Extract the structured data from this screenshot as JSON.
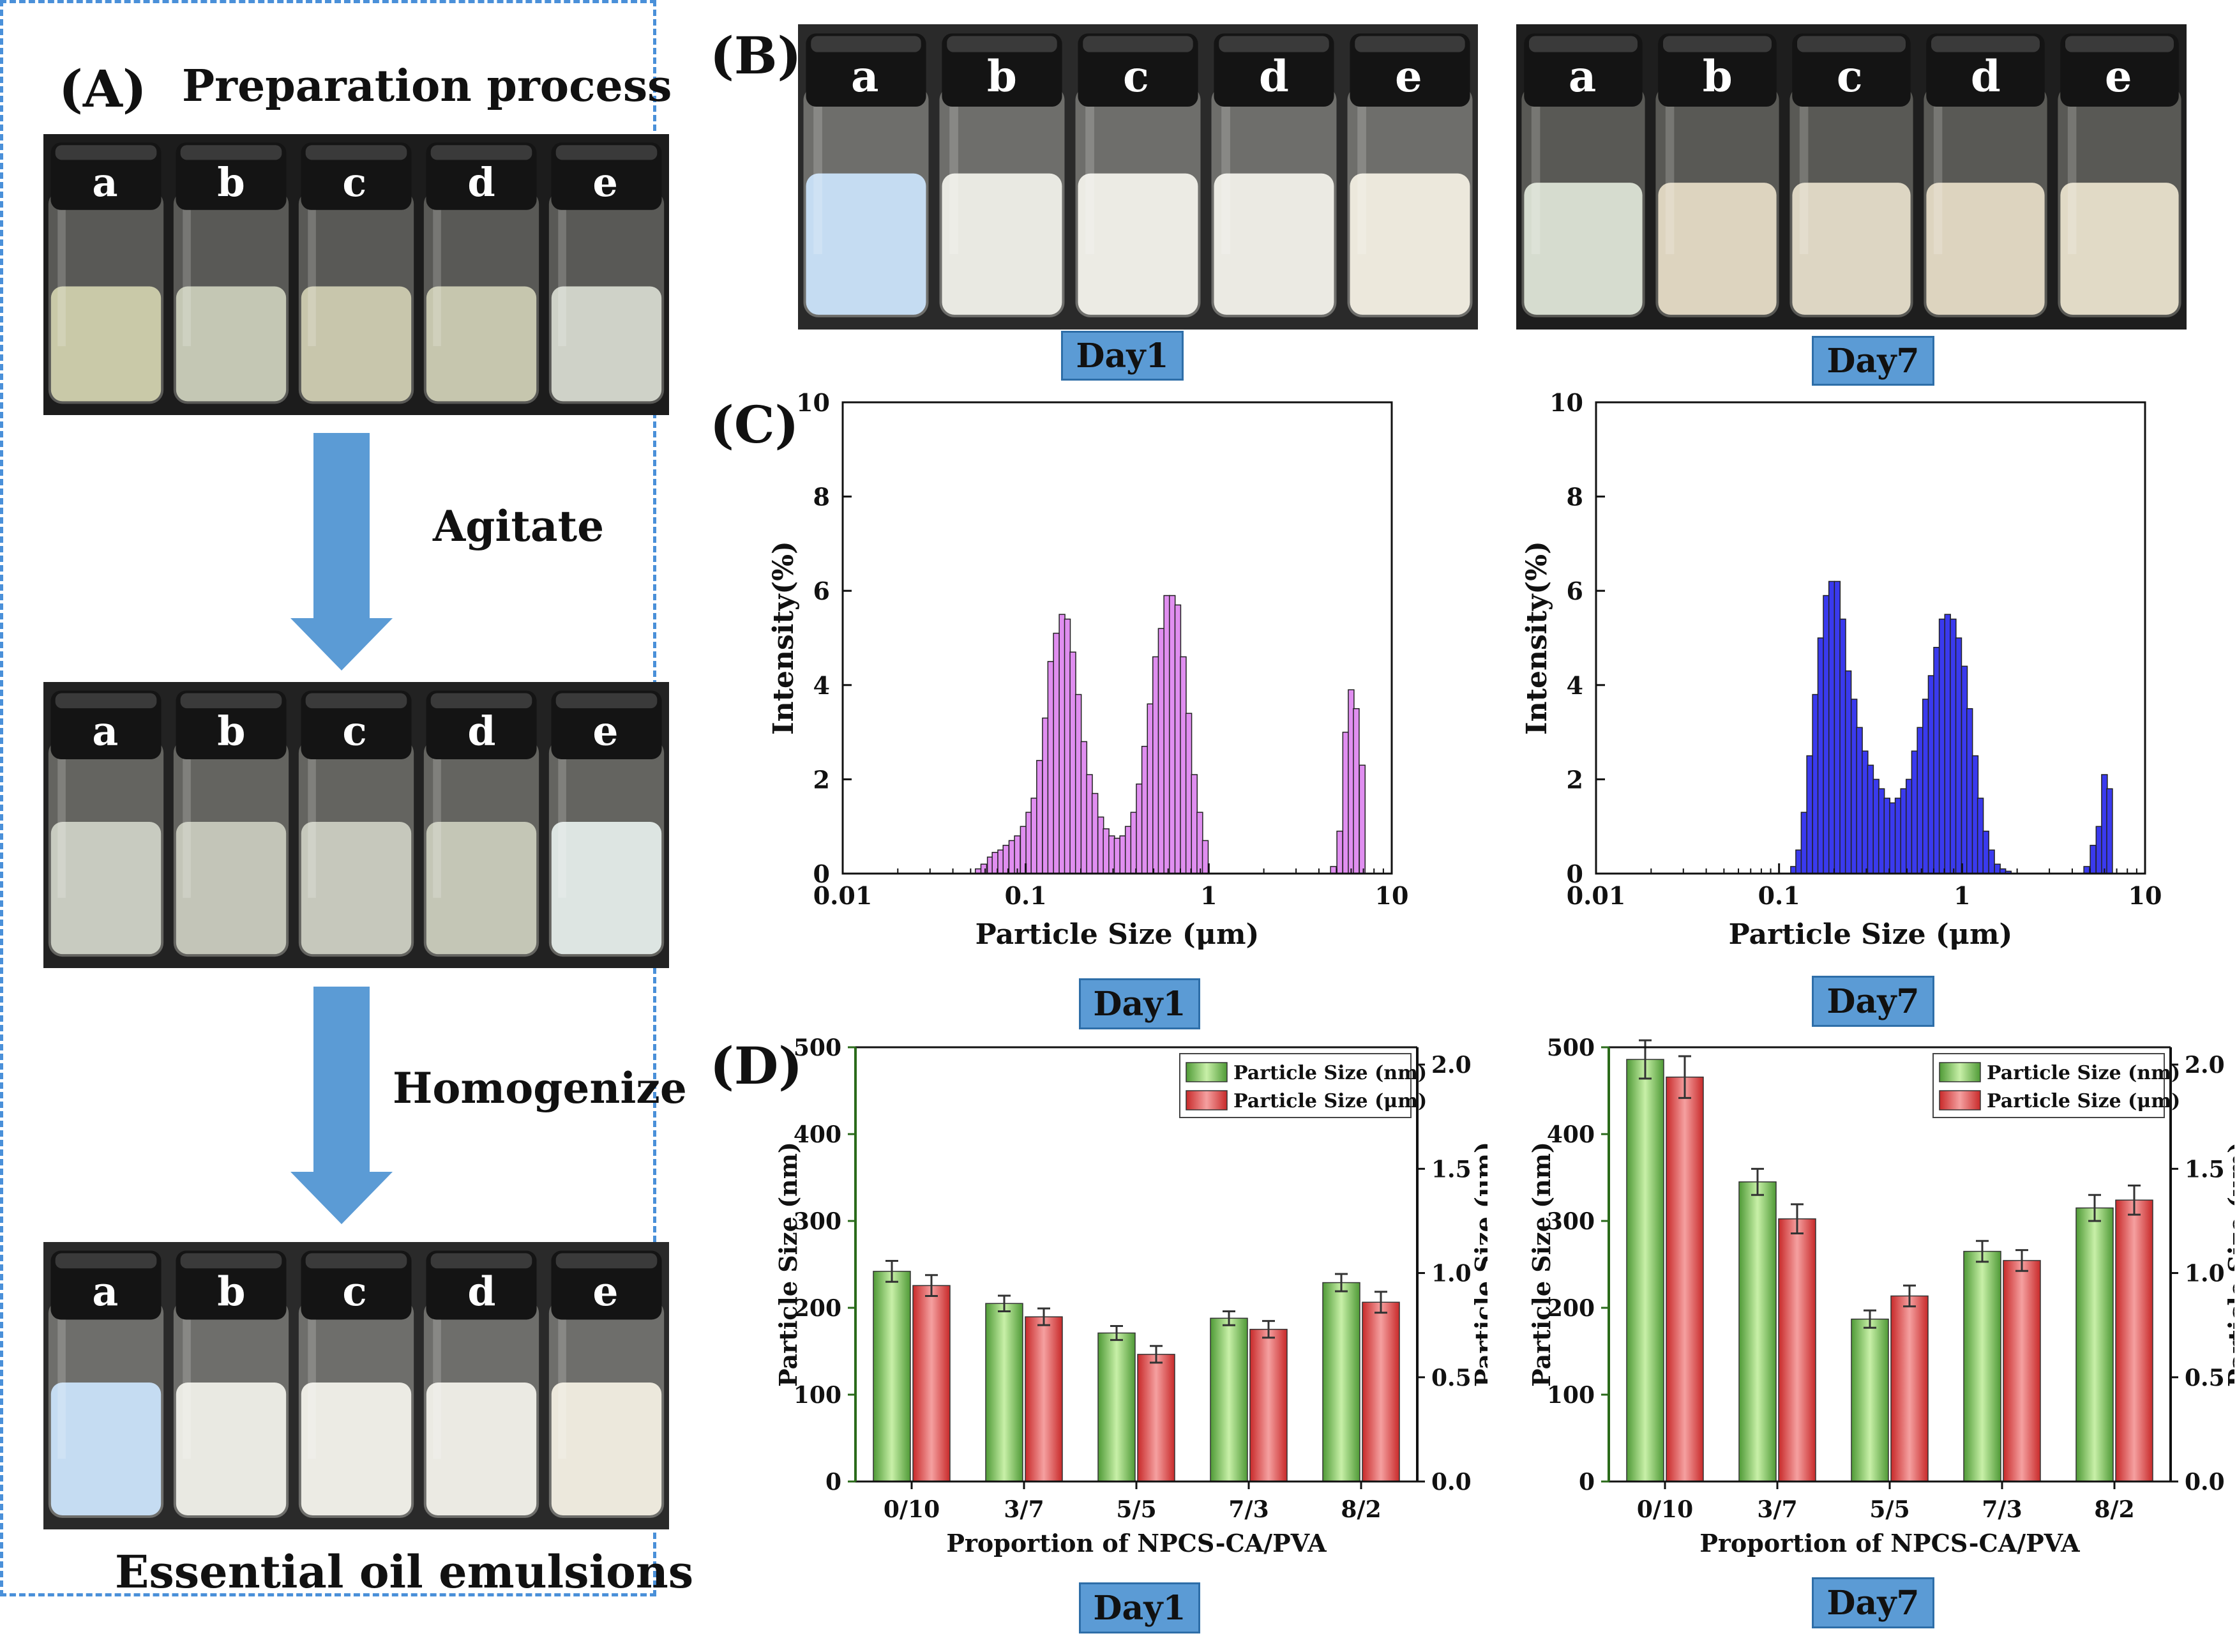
{
  "panel_a": {
    "letter": "(A)",
    "title": "Preparation process",
    "step1": "Agitate",
    "step2": "Homogenize",
    "footer": "Essential oil emulsions",
    "vial_labels": [
      "a",
      "b",
      "c",
      "d",
      "e"
    ]
  },
  "panel_b": {
    "letter": "(B)",
    "vial_labels": [
      "a",
      "b",
      "c",
      "d",
      "e"
    ],
    "day1_label": "Day1",
    "day7_label": "Day7"
  },
  "panel_c": {
    "letter": "(C)",
    "day1_label": "Day1",
    "day7_label": "Day7"
  },
  "panel_d": {
    "letter": "(D)",
    "day1_label": "Day1",
    "day7_label": "Day7"
  },
  "colors": {
    "dashed_border": "#4a90d9",
    "arrow": "#5b9bd5",
    "day_box": "#5b9bd5",
    "hist_day1": "#e08ef0",
    "hist_day7": "#3a3aee",
    "bar_nm": "#7fc25a",
    "bar_um": "#e2504e"
  },
  "chart_data": [
    {
      "type": "bar",
      "id": "c-day1",
      "title": "",
      "xlabel": "Particle Size (μm)",
      "ylabel": "Intensity(%)",
      "xscale": "log",
      "xlim": [
        0.01,
        10
      ],
      "ylim": [
        0,
        10
      ],
      "xticks": [
        "0.01",
        "0.1",
        "1",
        "10"
      ],
      "yticks": [
        "0",
        "2",
        "4",
        "6",
        "8",
        "10"
      ],
      "x": [
        0.055,
        0.059,
        0.064,
        0.068,
        0.073,
        0.078,
        0.084,
        0.09,
        0.097,
        0.104,
        0.111,
        0.119,
        0.128,
        0.137,
        0.147,
        0.158,
        0.169,
        0.181,
        0.194,
        0.208,
        0.223,
        0.239,
        0.257,
        0.275,
        0.295,
        0.316,
        0.339,
        0.363,
        0.389,
        0.417,
        0.447,
        0.479,
        0.513,
        0.55,
        0.59,
        0.632,
        0.678,
        0.726,
        0.778,
        0.834,
        0.894,
        0.958,
        4.8,
        5.2,
        5.6,
        6.0,
        6.4,
        6.9
      ],
      "values": [
        0.1,
        0.2,
        0.35,
        0.45,
        0.5,
        0.6,
        0.7,
        0.8,
        1.0,
        1.3,
        1.6,
        2.4,
        3.3,
        4.5,
        5.1,
        5.5,
        5.4,
        4.7,
        3.8,
        2.8,
        2.1,
        1.7,
        1.2,
        0.95,
        0.8,
        0.75,
        0.8,
        1.0,
        1.3,
        1.9,
        2.7,
        3.6,
        4.6,
        5.2,
        5.9,
        5.9,
        5.7,
        4.6,
        3.4,
        2.1,
        1.3,
        0.7,
        0.15,
        0.9,
        3.0,
        3.9,
        3.5,
        2.3
      ],
      "series_color": "#e08ef0"
    },
    {
      "type": "bar",
      "id": "c-day7",
      "title": "",
      "xlabel": "Particle Size (μm)",
      "ylabel": "Intensity(%)",
      "xscale": "log",
      "xlim": [
        0.01,
        10
      ],
      "ylim": [
        0,
        10
      ],
      "xticks": [
        "0.01",
        "0.1",
        "1",
        "10"
      ],
      "yticks": [
        "0",
        "2",
        "4",
        "6",
        "8",
        "10"
      ],
      "x": [
        0.12,
        0.128,
        0.137,
        0.147,
        0.158,
        0.169,
        0.181,
        0.194,
        0.208,
        0.223,
        0.239,
        0.257,
        0.275,
        0.295,
        0.316,
        0.339,
        0.363,
        0.389,
        0.417,
        0.447,
        0.479,
        0.513,
        0.55,
        0.59,
        0.632,
        0.678,
        0.726,
        0.778,
        0.834,
        0.894,
        0.958,
        1.03,
        1.1,
        1.18,
        1.26,
        1.35,
        1.45,
        1.56,
        1.67,
        1.79,
        4.8,
        5.2,
        5.6,
        6.0,
        6.4
      ],
      "values": [
        0.15,
        0.5,
        1.3,
        2.5,
        3.8,
        5.0,
        5.9,
        6.2,
        6.2,
        5.4,
        4.3,
        3.7,
        3.1,
        2.6,
        2.3,
        2.0,
        1.8,
        1.6,
        1.5,
        1.6,
        1.8,
        2.0,
        2.6,
        3.1,
        3.7,
        4.2,
        4.8,
        5.4,
        5.5,
        5.4,
        5.0,
        4.4,
        3.5,
        2.5,
        1.6,
        0.9,
        0.5,
        0.2,
        0.1,
        0.05,
        0.15,
        0.6,
        1.0,
        2.1,
        1.8
      ],
      "series_color": "#3a3aee"
    },
    {
      "type": "bar",
      "id": "d-day1",
      "title": "",
      "xlabel": "Proportion of  NPCS-CA/PVA",
      "ylabel": "Particle Size (nm)",
      "ylabel_right": "Particle Size (μm)",
      "categories": [
        "0/10",
        "3/7",
        "5/5",
        "7/3",
        "8/2"
      ],
      "ylim": [
        0,
        500
      ],
      "ylim_right": [
        0,
        2.083
      ],
      "yticks": [
        "0",
        "100",
        "200",
        "300",
        "400",
        "500"
      ],
      "yticks_right": [
        "0.0",
        "0.5",
        "1.0",
        "1.5",
        "2.0"
      ],
      "series": [
        {
          "name": "Particle Size (nm)",
          "axis": "left",
          "values": [
            242,
            205,
            171,
            188,
            229
          ],
          "errors": [
            12,
            9,
            8,
            8,
            10
          ]
        },
        {
          "name": "Particle Size (μm)",
          "axis": "right",
          "values": [
            0.94,
            0.79,
            0.61,
            0.73,
            0.86
          ],
          "errors": [
            0.05,
            0.04,
            0.04,
            0.04,
            0.05
          ]
        }
      ]
    },
    {
      "type": "bar",
      "id": "d-day7",
      "title": "",
      "xlabel": "Proportion of  NPCS-CA/PVA",
      "ylabel": "Particle Size (nm)",
      "ylabel_right": "Particle Size (μm)",
      "categories": [
        "0/10",
        "3/7",
        "5/5",
        "7/3",
        "8/2"
      ],
      "ylim": [
        0,
        500
      ],
      "ylim_right": [
        0,
        2.083
      ],
      "yticks": [
        "0",
        "100",
        "200",
        "300",
        "400",
        "500"
      ],
      "yticks_right": [
        "0.0",
        "0.5",
        "1.0",
        "1.5",
        "2.0"
      ],
      "series": [
        {
          "name": "Particle Size (nm)",
          "axis": "left",
          "values": [
            486,
            345,
            187,
            265,
            315
          ],
          "errors": [
            22,
            15,
            10,
            12,
            15
          ]
        },
        {
          "name": "Particle Size (μm)",
          "axis": "right",
          "values": [
            1.94,
            1.26,
            0.89,
            1.06,
            1.35
          ],
          "errors": [
            0.1,
            0.07,
            0.05,
            0.05,
            0.07
          ]
        }
      ]
    }
  ]
}
